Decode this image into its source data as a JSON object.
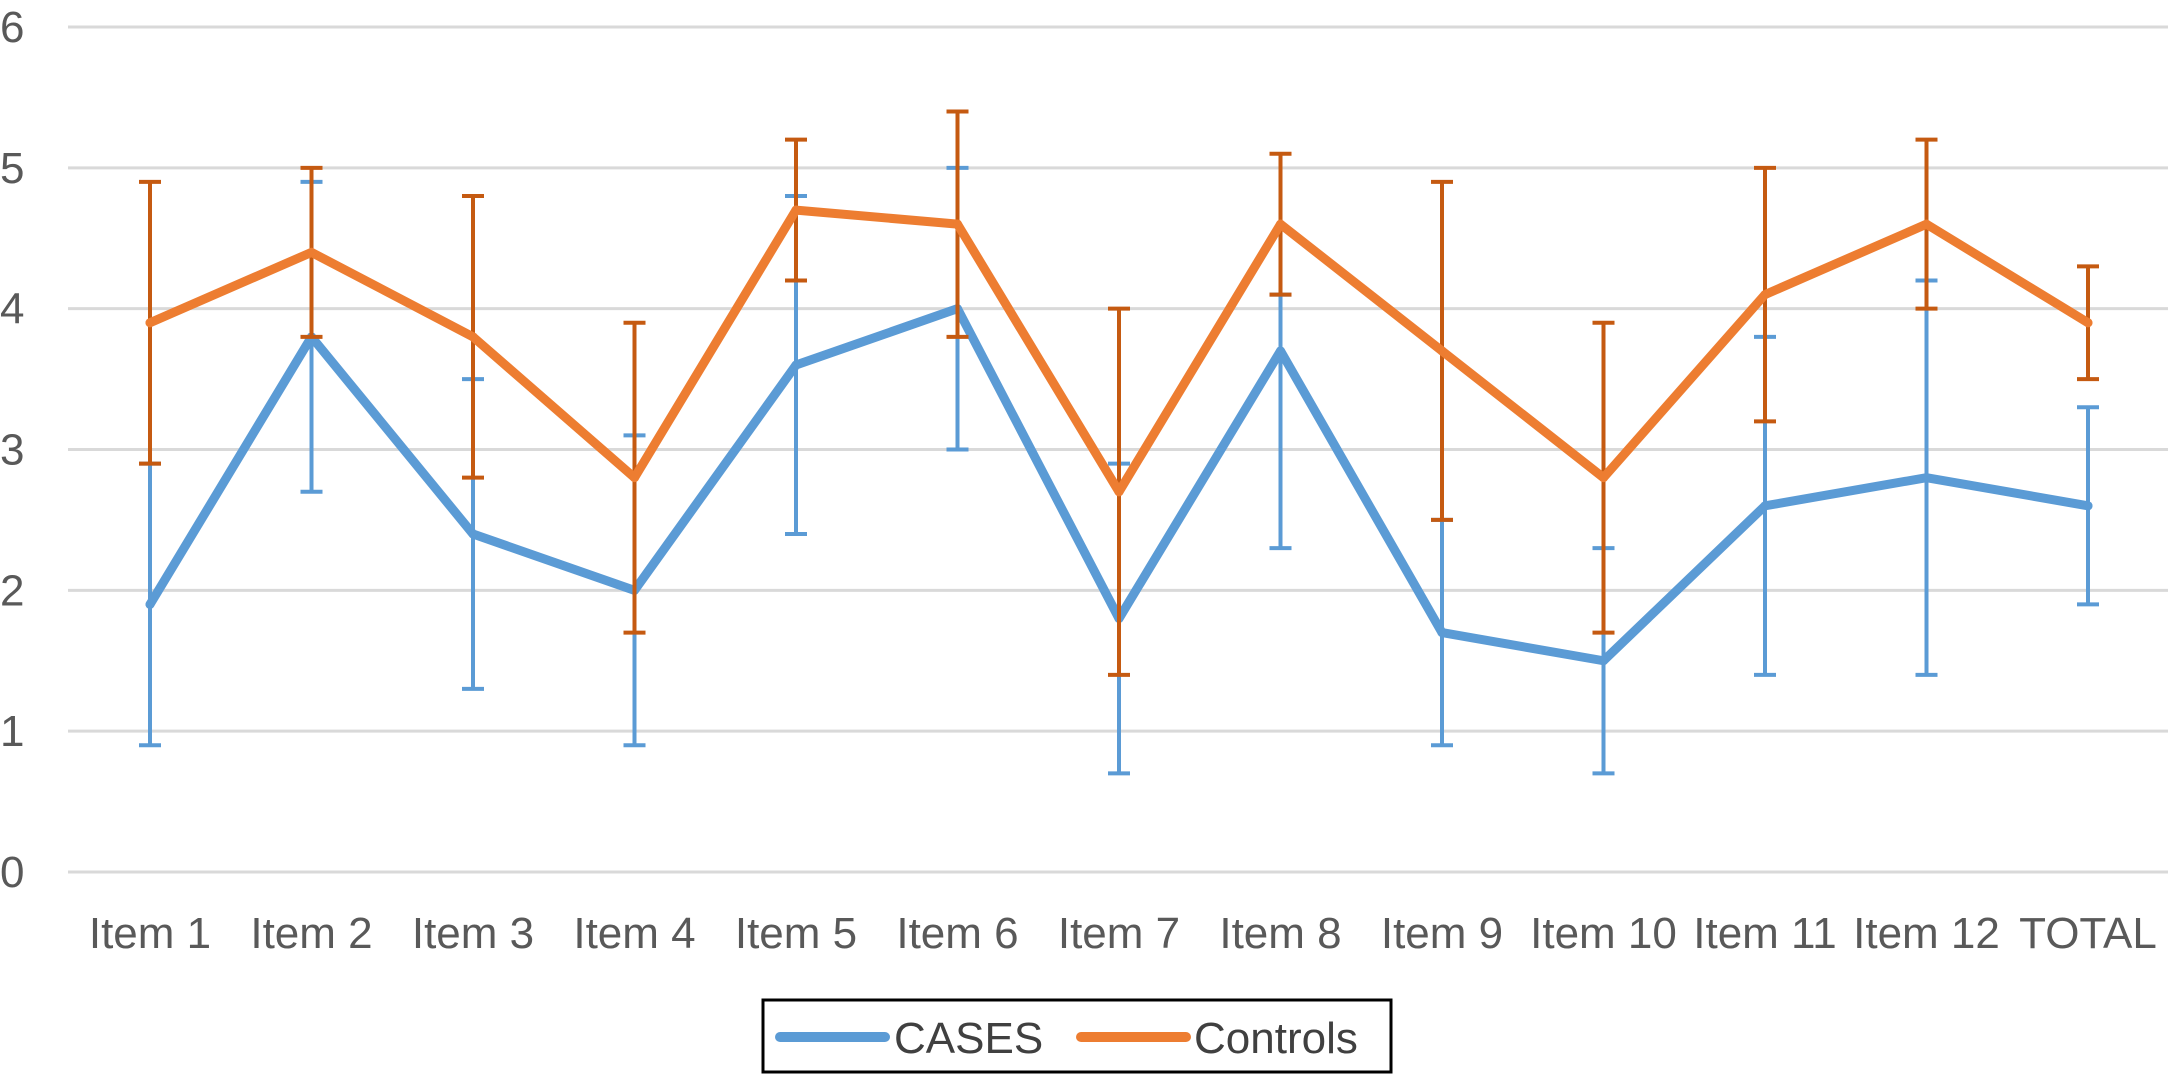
{
  "chart_data": {
    "type": "line",
    "title": "",
    "xlabel": "",
    "ylabel": "",
    "ylim": [
      0,
      6
    ],
    "yticks": [
      0,
      1,
      2,
      3,
      4,
      5,
      6
    ],
    "grid": true,
    "legend_position": "bottom",
    "categories": [
      "Item 1",
      "Item 2",
      "Item 3",
      "Item 4",
      "Item 5",
      "Item 6",
      "Item 7",
      "Item 8",
      "Item 9",
      "Item 10",
      "Item 11",
      "Item 12",
      "TOTAL"
    ],
    "series": [
      {
        "name": "CASES",
        "color": "#5b9bd5",
        "errorbar_color": "#5b9bd5",
        "values": [
          1.9,
          3.8,
          2.4,
          2.0,
          3.6,
          4.0,
          1.8,
          3.7,
          1.7,
          1.5,
          2.6,
          2.8,
          2.6
        ],
        "error_low": [
          0.9,
          2.7,
          1.3,
          0.9,
          2.4,
          3.0,
          0.7,
          2.3,
          0.9,
          0.7,
          1.4,
          1.4,
          1.9
        ],
        "error_high": [
          2.9,
          4.9,
          3.5,
          3.1,
          4.8,
          5.0,
          2.9,
          4.1,
          2.5,
          2.3,
          3.8,
          4.2,
          3.3
        ]
      },
      {
        "name": "Controls",
        "color": "#ed7d31",
        "errorbar_color": "#c55a11",
        "values": [
          3.9,
          4.4,
          3.8,
          2.8,
          4.7,
          4.6,
          2.7,
          4.6,
          3.7,
          2.8,
          4.1,
          4.6,
          3.9
        ],
        "error_low": [
          2.9,
          3.8,
          2.8,
          1.7,
          4.2,
          3.8,
          1.4,
          4.1,
          2.5,
          1.7,
          3.2,
          4.0,
          3.5
        ],
        "error_high": [
          4.9,
          5.0,
          4.8,
          3.9,
          5.2,
          5.4,
          4.0,
          5.1,
          4.9,
          3.9,
          5.0,
          5.2,
          4.3
        ]
      }
    ]
  }
}
